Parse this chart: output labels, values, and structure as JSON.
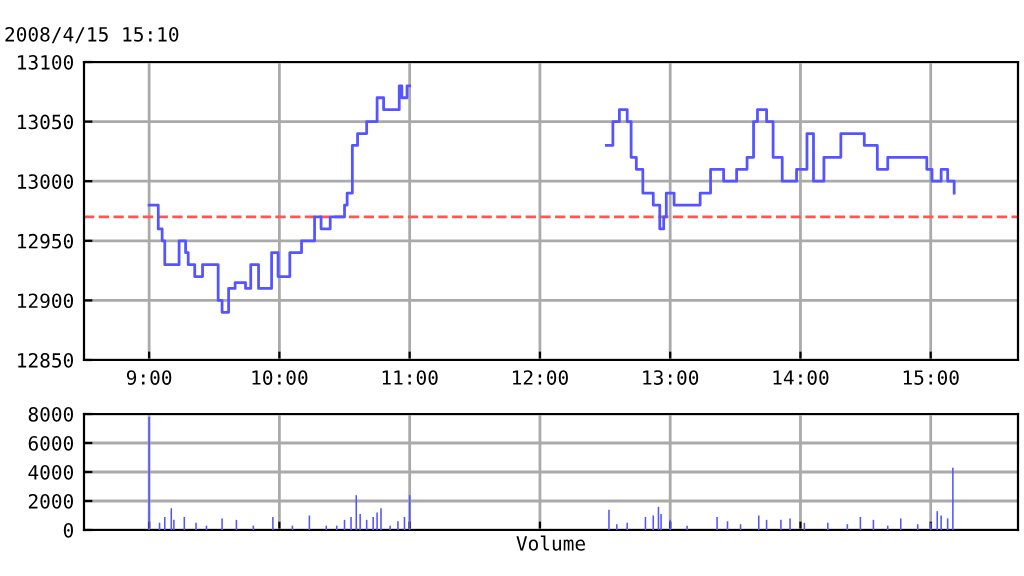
{
  "chart_data": [
    {
      "type": "step",
      "subtitle": "2008/4/15 15:10",
      "x": [
        9.0,
        9.07,
        9.1,
        9.12,
        9.23,
        9.28,
        9.3,
        9.35,
        9.41,
        9.53,
        9.56,
        9.61,
        9.66,
        9.74,
        9.78,
        9.84,
        9.94,
        9.99,
        10.08,
        10.17,
        10.27,
        10.32,
        10.39,
        10.5,
        10.52,
        10.56,
        10.6,
        10.67,
        10.75,
        10.8,
        10.87,
        10.92,
        10.94,
        10.98,
        11.0,
        12.5,
        12.51,
        12.56,
        12.61,
        12.67,
        12.7,
        12.74,
        12.79,
        12.87,
        12.92,
        12.95,
        12.97,
        13.03,
        13.18,
        13.23,
        13.31,
        13.41,
        13.51,
        13.59,
        13.64,
        13.67,
        13.74,
        13.79,
        13.86,
        13.97,
        14.05,
        14.1,
        14.18,
        14.31,
        14.49,
        14.59,
        14.67,
        14.97,
        15.01,
        15.08,
        15.13,
        15.18
      ],
      "series": [
        {
          "color": "#5555ff",
          "values": [
            12980,
            12960,
            12950,
            12930,
            12950,
            12940,
            12930,
            12920,
            12930,
            12900,
            12890,
            12910,
            12915,
            12910,
            12930,
            12910,
            12940,
            12920,
            12940,
            12950,
            12970,
            12960,
            12970,
            12980,
            12990,
            13030,
            13040,
            13050,
            13070,
            13060,
            13060,
            13080,
            13070,
            13080,
            null,
            null,
            13030,
            13050,
            13060,
            13050,
            13020,
            13010,
            12990,
            12980,
            12960,
            12970,
            12990,
            12980,
            12980,
            12990,
            13010,
            13000,
            13010,
            13020,
            13050,
            13060,
            13050,
            13020,
            13000,
            13010,
            13040,
            13000,
            13020,
            13040,
            13030,
            13010,
            13020,
            13010,
            13000,
            13010,
            13000,
            12990
          ]
        }
      ],
      "xlim": [
        8.5,
        15.67
      ],
      "xticks": [
        {
          "value": 9,
          "label": "9:00"
        },
        {
          "value": 10,
          "label": "10:00"
        },
        {
          "value": 11,
          "label": "11:00"
        },
        {
          "value": 12,
          "label": "12:00"
        },
        {
          "value": 13,
          "label": "13:00"
        },
        {
          "value": 14,
          "label": "14:00"
        },
        {
          "value": 15,
          "label": "15:00"
        }
      ],
      "ylim": [
        12850,
        13100
      ],
      "yticks": [
        12850,
        12900,
        12950,
        13000,
        13050,
        13100
      ],
      "ref_lines": [
        {
          "axis": "y",
          "value": 12970,
          "color": "#ff5555",
          "line_style": "dashed"
        }
      ],
      "grid": true
    },
    {
      "type": "bar",
      "xlabel": "Volume",
      "x": [
        9.0,
        9.08,
        9.12,
        9.17,
        9.19,
        9.27,
        9.36,
        9.44,
        9.56,
        9.67,
        9.8,
        9.95,
        10.1,
        10.23,
        10.36,
        10.44,
        10.5,
        10.55,
        10.59,
        10.62,
        10.67,
        10.72,
        10.75,
        10.78,
        10.85,
        10.91,
        10.96,
        11.0,
        12.53,
        12.59,
        12.67,
        12.81,
        12.87,
        12.91,
        12.93,
        13.0,
        13.13,
        13.36,
        13.44,
        13.54,
        13.68,
        13.74,
        13.85,
        13.92,
        14.03,
        14.21,
        14.36,
        14.46,
        14.56,
        14.67,
        14.77,
        14.9,
        15.0,
        15.05,
        15.08,
        15.13,
        15.17
      ],
      "series": [
        {
          "color": "#5555ff",
          "values": [
            7800,
            500,
            900,
            1500,
            700,
            900,
            500,
            300,
            800,
            700,
            300,
            900,
            300,
            1000,
            300,
            300,
            700,
            900,
            2400,
            1100,
            700,
            900,
            1200,
            1500,
            300,
            600,
            900,
            2400,
            1400,
            400,
            500,
            900,
            1000,
            1600,
            1100,
            700,
            300,
            900,
            600,
            400,
            1000,
            700,
            700,
            800,
            500,
            500,
            400,
            900,
            700,
            300,
            800,
            400,
            500,
            1300,
            1000,
            800,
            4300
          ]
        }
      ],
      "xlim": [
        8.5,
        15.67
      ],
      "xticks": [
        9,
        10,
        11,
        12,
        13,
        14,
        15
      ],
      "tick_labels": "y",
      "ylim": [
        0,
        8000
      ],
      "yticks": [
        0,
        2000,
        4000,
        6000,
        8000
      ],
      "grid": true
    }
  ]
}
